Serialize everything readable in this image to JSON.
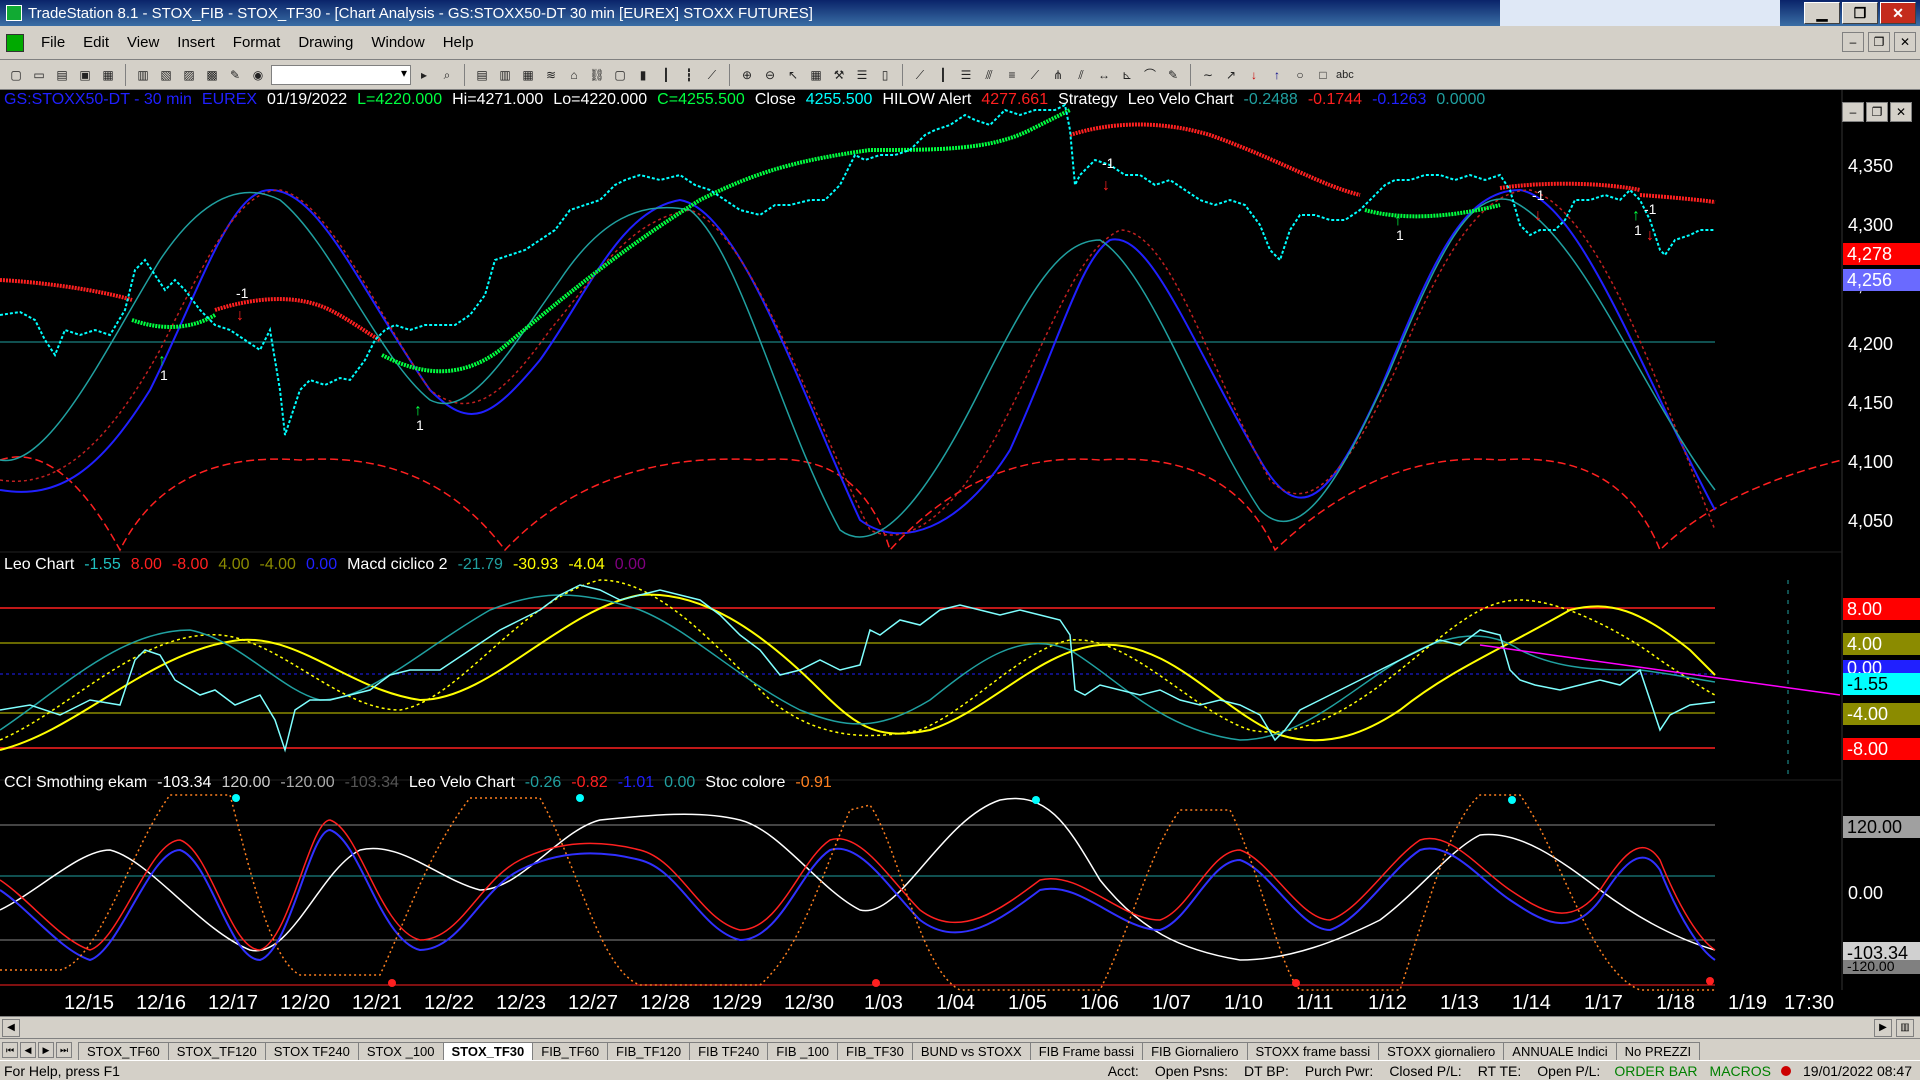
{
  "window": {
    "title": "TradeStation 8.1 - STOX_FIB - STOX_TF30 - [Chart Analysis - GS:STOXX50-DT  30 min  [EUREX] STOXX FUTURES]",
    "min": "▁",
    "max": "❐",
    "close": "✕"
  },
  "menu": [
    "File",
    "Edit",
    "View",
    "Insert",
    "Format",
    "Drawing",
    "Window",
    "Help"
  ],
  "mdi": {
    "min": "–",
    "restore": "❐",
    "close": "✕"
  },
  "toolbar": {
    "abc_label": "abc"
  },
  "legend_price": {
    "symbol": "GS:STOXX50-DT - 30 min",
    "exchange": "EUREX",
    "date": "01/19/2022",
    "low_open": "L=4220.000",
    "hi": "Hi=4271.000",
    "lo": "Lo=4220.000",
    "close_val": "C=4255.500",
    "close_label": "Close",
    "close_num": "4255.500",
    "hilow": "HILOW Alert",
    "hilow_val": "4277.661",
    "strategy": "Strategy",
    "leo_velo": "Leo Velo Chart",
    "lv1": "-0.2488",
    "lv2": "-0.1744",
    "lv3": "-0.1263",
    "lv4": "0.0000"
  },
  "legend_mid": {
    "name": "Leo Chart",
    "v1": "-1.55",
    "v2": "8.00",
    "v3": "-8.00",
    "v4": "4.00",
    "v5": "-4.00",
    "v6": "0.00",
    "macd": "Macd ciclico 2",
    "m1": "-21.79",
    "m2": "-30.93",
    "m3": "-4.04",
    "m4": "0.00"
  },
  "legend_low": {
    "name": "CCI Smothing ekam",
    "c1": "-103.34",
    "c2": "120.00",
    "c3": "-120.00",
    "c4": "-103.34",
    "leo": "Leo Velo Chart",
    "l1": "-0.26",
    "l2": "-0.82",
    "l3": "-1.01",
    "l4": "0.00",
    "stoc": "Stoc colore",
    "s1": "-0.91"
  },
  "price_axis": [
    "4,350",
    "4,300",
    "4,250",
    "4,200",
    "4,150",
    "4,100",
    "4,050"
  ],
  "price_tags": {
    "hilow": "4,278",
    "last": "4,256"
  },
  "mid_axis": {
    "p8": "8.00",
    "p4": "4.00",
    "zero": "0.00",
    "cur": "-1.55",
    "m4": "-4.00",
    "m8": "-8.00"
  },
  "low_axis": {
    "p120": "120.00",
    "zero": "0.00",
    "cur": "-103.34",
    "m120": "-120.00"
  },
  "dates": [
    "12/15",
    "12/16",
    "12/17",
    "12/20",
    "12/21",
    "12/22",
    "12/23",
    "12/27",
    "12/28",
    "12/29",
    "12/30",
    "1/03",
    "1/04",
    "1/05",
    "1/06",
    "1/07",
    "1/10",
    "1/11",
    "1/12",
    "1/13",
    "1/14",
    "1/17",
    "1/18",
    "1/19",
    "17:30"
  ],
  "signals": {
    "buy": "1",
    "sell": "-1"
  },
  "tabs": [
    "STOX_TF60",
    "STOX_TF120",
    "STOX TF240",
    "STOX _100",
    "STOX_TF30",
    "FIB_TF60",
    "FIB_TF120",
    "FIB TF240",
    "FIB _100",
    "FIB_TF30",
    "BUND vs STOXX",
    "FIB Frame bassi",
    "FIB Giornaliero",
    "STOXX frame bassi",
    "STOXX giornaliero",
    "ANNUALE Indici",
    "No PREZZI"
  ],
  "active_tab": "STOX_TF30",
  "status": {
    "help": "For Help, press F1",
    "acct": "Acct:",
    "open_psns": "Open Psns:",
    "dt_bp": "DT BP:",
    "purch_pwr": "Purch Pwr:",
    "closed_pl": "Closed P/L:",
    "rt_te": "RT TE:",
    "open_pl": "Open P/L:",
    "order_bar": "ORDER BAR",
    "macros": "MACROS",
    "datetime": "19/01/2022 08:47"
  },
  "colors": {
    "cyan": "#00ffff",
    "red": "#ff2020",
    "green": "#00ff40",
    "blue": "#2020ff",
    "teal": "#20a0a0",
    "yellow": "#ffff00",
    "olive": "#8b8b00",
    "magenta": "#ff00ff"
  },
  "chart_data": {
    "type": "line",
    "title": "GS:STOXX50-DT - 30 min",
    "ylim": [
      4030,
      4400
    ],
    "x": [
      "12/15",
      "12/16",
      "12/17",
      "12/20",
      "12/21",
      "12/22",
      "12/23",
      "12/27",
      "12/28",
      "12/29",
      "12/30",
      "1/03",
      "1/04",
      "1/05",
      "1/06",
      "1/07",
      "1/10",
      "1/11",
      "1/12",
      "1/13",
      "1/14",
      "1/17",
      "1/18"
    ],
    "series": [
      {
        "name": "Close",
        "values": [
          4165,
          4215,
          4150,
          4080,
          4150,
          4175,
          4230,
          4290,
          4300,
          4280,
          4300,
          4330,
          4355,
          4375,
          4315,
          4300,
          4260,
          4280,
          4300,
          4300,
          4255,
          4285,
          4256
        ]
      },
      {
        "name": "HILOW Alert",
        "values": [
          4200,
          4165,
          4190,
          4175,
          4125,
          4105,
          4150,
          4205,
          4255,
          4275,
          4285,
          4290,
          4300,
          4330,
          4365,
          4345,
          4320,
          4300,
          4270,
          4280,
          4300,
          4295,
          4278
        ]
      }
    ]
  }
}
